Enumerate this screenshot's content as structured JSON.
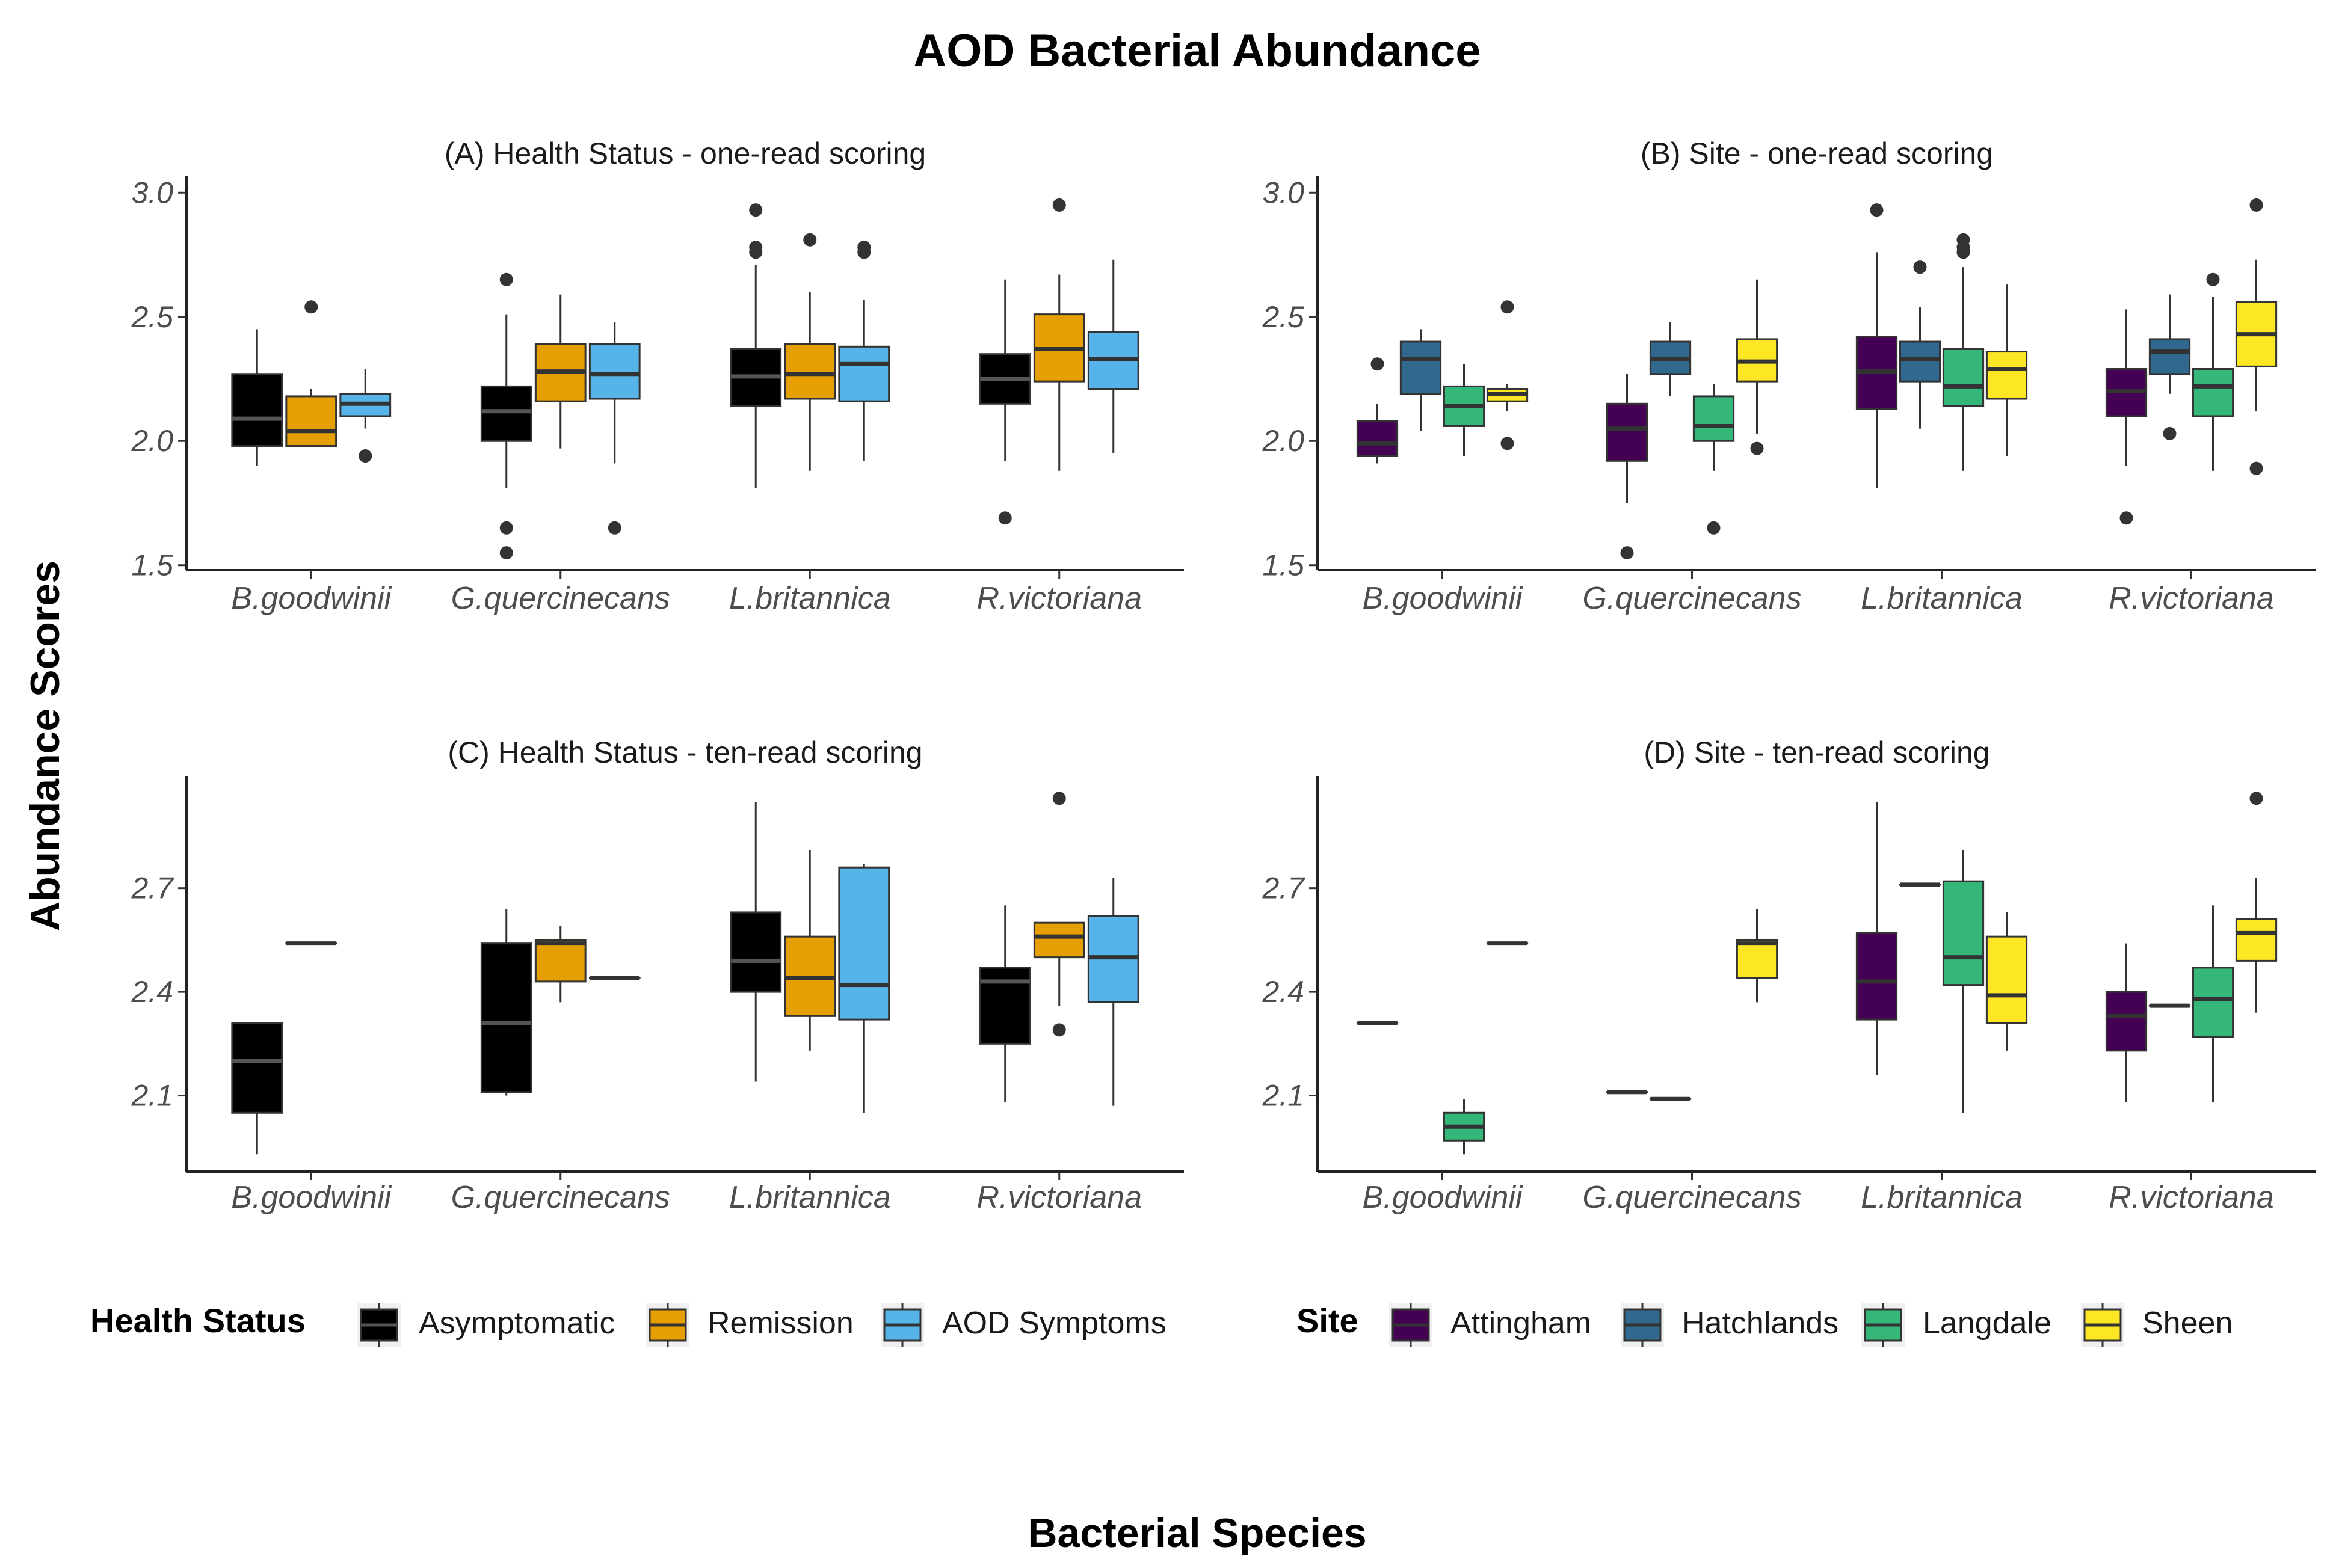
{
  "title": "AOD Bacterial Abundance",
  "y_axis_label": "Abundance Scores",
  "x_axis_label": "Bacterial Species",
  "legends": [
    {
      "title": "Health Status",
      "items": [
        {
          "name": "Asymptomatic",
          "color": "#000000"
        },
        {
          "name": "Remission",
          "color": "#E69F00"
        },
        {
          "name": "AOD Symptoms",
          "color": "#56B4E9"
        }
      ]
    },
    {
      "title": "Site",
      "items": [
        {
          "name": "Attingham",
          "color": "#440154"
        },
        {
          "name": "Hatchlands",
          "color": "#31688E"
        },
        {
          "name": "Langdale",
          "color": "#35B779"
        },
        {
          "name": "Sheen",
          "color": "#FDE725"
        }
      ]
    }
  ],
  "chart_data": [
    {
      "type": "boxplot",
      "title": "(A) Health Status - one-read scoring",
      "categories": [
        "B.goodwinii",
        "G.quercinecans",
        "L.britannica",
        "R.victoriana"
      ],
      "group_names": [
        "Asymptomatic",
        "Remission",
        "AOD Symptoms"
      ],
      "group_colors": [
        "#000000",
        "#E69F00",
        "#56B4E9"
      ],
      "ylim": [
        1.48,
        3.02
      ],
      "yticks": [
        1.5,
        2.0,
        2.5,
        3.0
      ],
      "ytick_labels": [
        "1.5",
        "2.0",
        "2.5",
        "3.0"
      ],
      "boxes": [
        [
          {
            "min": 1.9,
            "q1": 1.98,
            "med": 2.09,
            "q3": 2.27,
            "max": 2.45,
            "outliers": []
          },
          {
            "min": 1.98,
            "q1": 1.98,
            "med": 2.04,
            "q3": 2.18,
            "max": 2.21,
            "outliers": [
              2.54
            ]
          },
          {
            "min": 2.05,
            "q1": 2.1,
            "med": 2.15,
            "q3": 2.19,
            "max": 2.29,
            "outliers": [
              1.94
            ]
          }
        ],
        [
          {
            "min": 1.81,
            "q1": 2.0,
            "med": 2.12,
            "q3": 2.22,
            "max": 2.51,
            "outliers": [
              2.65,
              1.65,
              1.55
            ]
          },
          {
            "min": 1.97,
            "q1": 2.16,
            "med": 2.28,
            "q3": 2.39,
            "max": 2.59,
            "outliers": []
          },
          {
            "min": 1.91,
            "q1": 2.17,
            "med": 2.27,
            "q3": 2.39,
            "max": 2.48,
            "outliers": [
              1.65
            ]
          }
        ],
        [
          {
            "min": 1.81,
            "q1": 2.14,
            "med": 2.26,
            "q3": 2.37,
            "max": 2.71,
            "outliers": [
              2.76,
              2.78,
              2.93
            ]
          },
          {
            "min": 1.88,
            "q1": 2.17,
            "med": 2.27,
            "q3": 2.39,
            "max": 2.6,
            "outliers": [
              2.81
            ]
          },
          {
            "min": 1.92,
            "q1": 2.16,
            "med": 2.31,
            "q3": 2.38,
            "max": 2.57,
            "outliers": [
              2.76,
              2.78
            ]
          }
        ],
        [
          {
            "min": 1.92,
            "q1": 2.15,
            "med": 2.25,
            "q3": 2.35,
            "max": 2.65,
            "outliers": [
              1.69
            ]
          },
          {
            "min": 1.88,
            "q1": 2.24,
            "med": 2.37,
            "q3": 2.51,
            "max": 2.67,
            "outliers": [
              2.95
            ]
          },
          {
            "min": 1.95,
            "q1": 2.21,
            "med": 2.33,
            "q3": 2.44,
            "max": 2.73,
            "outliers": []
          }
        ]
      ]
    },
    {
      "type": "boxplot",
      "title": "(B) Site - one-read scoring",
      "categories": [
        "B.goodwinii",
        "G.quercinecans",
        "L.britannica",
        "R.victoriana"
      ],
      "group_names": [
        "Attingham",
        "Hatchlands",
        "Langdale",
        "Sheen"
      ],
      "group_colors": [
        "#440154",
        "#31688E",
        "#35B779",
        "#FDE725"
      ],
      "ylim": [
        1.48,
        3.02
      ],
      "yticks": [
        1.5,
        2.0,
        2.5,
        3.0
      ],
      "ytick_labels": [
        "1.5",
        "2.0",
        "2.5",
        "3.0"
      ],
      "boxes": [
        [
          {
            "min": 1.91,
            "q1": 1.94,
            "med": 1.99,
            "q3": 2.08,
            "max": 2.15,
            "outliers": [
              2.31
            ]
          },
          {
            "min": 2.04,
            "q1": 2.19,
            "med": 2.33,
            "q3": 2.4,
            "max": 2.45,
            "outliers": []
          },
          {
            "min": 1.94,
            "q1": 2.06,
            "med": 2.14,
            "q3": 2.22,
            "max": 2.31,
            "outliers": []
          },
          {
            "min": 2.12,
            "q1": 2.16,
            "med": 2.19,
            "q3": 2.21,
            "max": 2.23,
            "outliers": [
              2.54,
              1.99
            ]
          }
        ],
        [
          {
            "min": 1.75,
            "q1": 1.92,
            "med": 2.05,
            "q3": 2.15,
            "max": 2.27,
            "outliers": [
              1.55
            ]
          },
          {
            "min": 2.18,
            "q1": 2.27,
            "med": 2.33,
            "q3": 2.4,
            "max": 2.48,
            "outliers": []
          },
          {
            "min": 1.88,
            "q1": 2.0,
            "med": 2.06,
            "q3": 2.18,
            "max": 2.23,
            "outliers": [
              1.65
            ]
          },
          {
            "min": 2.03,
            "q1": 2.24,
            "med": 2.32,
            "q3": 2.41,
            "max": 2.65,
            "outliers": [
              1.97
            ]
          }
        ],
        [
          {
            "min": 1.81,
            "q1": 2.13,
            "med": 2.28,
            "q3": 2.42,
            "max": 2.76,
            "outliers": [
              2.93
            ]
          },
          {
            "min": 2.05,
            "q1": 2.24,
            "med": 2.33,
            "q3": 2.4,
            "max": 2.54,
            "outliers": [
              2.7
            ]
          },
          {
            "min": 1.88,
            "q1": 2.14,
            "med": 2.22,
            "q3": 2.37,
            "max": 2.7,
            "outliers": [
              2.76,
              2.78,
              2.81
            ]
          },
          {
            "min": 1.94,
            "q1": 2.17,
            "med": 2.29,
            "q3": 2.36,
            "max": 2.63,
            "outliers": []
          }
        ],
        [
          {
            "min": 1.9,
            "q1": 2.1,
            "med": 2.2,
            "q3": 2.29,
            "max": 2.53,
            "outliers": [
              1.69
            ]
          },
          {
            "min": 2.19,
            "q1": 2.27,
            "med": 2.36,
            "q3": 2.41,
            "max": 2.59,
            "outliers": [
              2.03
            ]
          },
          {
            "min": 1.88,
            "q1": 2.1,
            "med": 2.22,
            "q3": 2.29,
            "max": 2.58,
            "outliers": [
              2.65
            ]
          },
          {
            "min": 2.12,
            "q1": 2.3,
            "med": 2.43,
            "q3": 2.56,
            "max": 2.73,
            "outliers": [
              2.95,
              1.89
            ]
          }
        ]
      ]
    },
    {
      "type": "boxplot",
      "title": "(C) Health Status - ten-read scoring",
      "categories": [
        "B.goodwinii",
        "G.quercinecans",
        "L.britannica",
        "R.victoriana"
      ],
      "group_names": [
        "Asymptomatic",
        "Remission",
        "AOD Symptoms"
      ],
      "group_colors": [
        "#000000",
        "#E69F00",
        "#56B4E9"
      ],
      "ylim": [
        1.88,
        2.99
      ],
      "yticks": [
        2.1,
        2.4,
        2.7
      ],
      "ytick_labels": [
        "2.1",
        "2.4",
        "2.7"
      ],
      "boxes": [
        [
          {
            "min": 1.93,
            "q1": 2.05,
            "med": 2.2,
            "q3": 2.31,
            "max": 2.31,
            "outliers": []
          },
          {
            "min": 2.54,
            "q1": 2.54,
            "med": 2.54,
            "q3": 2.54,
            "max": 2.54,
            "outliers": []
          },
          null
        ],
        [
          {
            "min": 2.1,
            "q1": 2.11,
            "med": 2.31,
            "q3": 2.54,
            "max": 2.64,
            "outliers": []
          },
          {
            "min": 2.37,
            "q1": 2.43,
            "med": 2.54,
            "q3": 2.55,
            "max": 2.59,
            "outliers": []
          },
          {
            "min": 2.44,
            "q1": 2.44,
            "med": 2.44,
            "q3": 2.44,
            "max": 2.44,
            "outliers": []
          }
        ],
        [
          {
            "min": 2.14,
            "q1": 2.4,
            "med": 2.49,
            "q3": 2.63,
            "max": 2.95,
            "outliers": []
          },
          {
            "min": 2.23,
            "q1": 2.33,
            "med": 2.44,
            "q3": 2.56,
            "max": 2.81,
            "outliers": []
          },
          {
            "min": 2.05,
            "q1": 2.32,
            "med": 2.42,
            "q3": 2.76,
            "max": 2.77,
            "outliers": []
          }
        ],
        [
          {
            "min": 2.08,
            "q1": 2.25,
            "med": 2.43,
            "q3": 2.47,
            "max": 2.65,
            "outliers": []
          },
          {
            "min": 2.36,
            "q1": 2.5,
            "med": 2.56,
            "q3": 2.6,
            "max": 2.6,
            "outliers": [
              2.96,
              2.29
            ]
          },
          {
            "min": 2.07,
            "q1": 2.37,
            "med": 2.5,
            "q3": 2.62,
            "max": 2.73,
            "outliers": []
          }
        ]
      ]
    },
    {
      "type": "boxplot",
      "title": "(D) Site - ten-read scoring",
      "categories": [
        "B.goodwinii",
        "G.quercinecans",
        "L.britannica",
        "R.victoriana"
      ],
      "group_names": [
        "Attingham",
        "Hatchlands",
        "Langdale",
        "Sheen"
      ],
      "group_colors": [
        "#440154",
        "#31688E",
        "#35B779",
        "#FDE725"
      ],
      "ylim": [
        1.88,
        2.99
      ],
      "yticks": [
        2.1,
        2.4,
        2.7
      ],
      "ytick_labels": [
        "2.1",
        "2.4",
        "2.7"
      ],
      "boxes": [
        [
          {
            "min": 2.31,
            "q1": 2.31,
            "med": 2.31,
            "q3": 2.31,
            "max": 2.31,
            "outliers": []
          },
          null,
          {
            "min": 1.93,
            "q1": 1.97,
            "med": 2.01,
            "q3": 2.05,
            "max": 2.09,
            "outliers": []
          },
          {
            "min": 2.54,
            "q1": 2.54,
            "med": 2.54,
            "q3": 2.54,
            "max": 2.54,
            "outliers": []
          }
        ],
        [
          {
            "min": 2.11,
            "q1": 2.11,
            "med": 2.11,
            "q3": 2.11,
            "max": 2.11,
            "outliers": []
          },
          {
            "min": 2.09,
            "q1": 2.09,
            "med": 2.09,
            "q3": 2.09,
            "max": 2.09,
            "outliers": []
          },
          null,
          {
            "min": 2.37,
            "q1": 2.44,
            "med": 2.54,
            "q3": 2.55,
            "max": 2.64,
            "outliers": []
          }
        ],
        [
          {
            "min": 2.16,
            "q1": 2.32,
            "med": 2.43,
            "q3": 2.57,
            "max": 2.95,
            "outliers": []
          },
          {
            "min": 2.71,
            "q1": 2.71,
            "med": 2.71,
            "q3": 2.71,
            "max": 2.71,
            "outliers": []
          },
          {
            "min": 2.05,
            "q1": 2.42,
            "med": 2.5,
            "q3": 2.72,
            "max": 2.81,
            "outliers": []
          },
          {
            "min": 2.23,
            "q1": 2.31,
            "med": 2.39,
            "q3": 2.56,
            "max": 2.63,
            "outliers": []
          }
        ],
        [
          {
            "min": 2.08,
            "q1": 2.23,
            "med": 2.33,
            "q3": 2.4,
            "max": 2.54,
            "outliers": []
          },
          {
            "min": 2.36,
            "q1": 2.36,
            "med": 2.36,
            "q3": 2.36,
            "max": 2.36,
            "outliers": []
          },
          {
            "min": 2.08,
            "q1": 2.27,
            "med": 2.38,
            "q3": 2.47,
            "max": 2.65,
            "outliers": []
          },
          {
            "min": 2.34,
            "q1": 2.49,
            "med": 2.57,
            "q3": 2.61,
            "max": 2.73,
            "outliers": [
              2.96
            ]
          }
        ]
      ]
    }
  ]
}
